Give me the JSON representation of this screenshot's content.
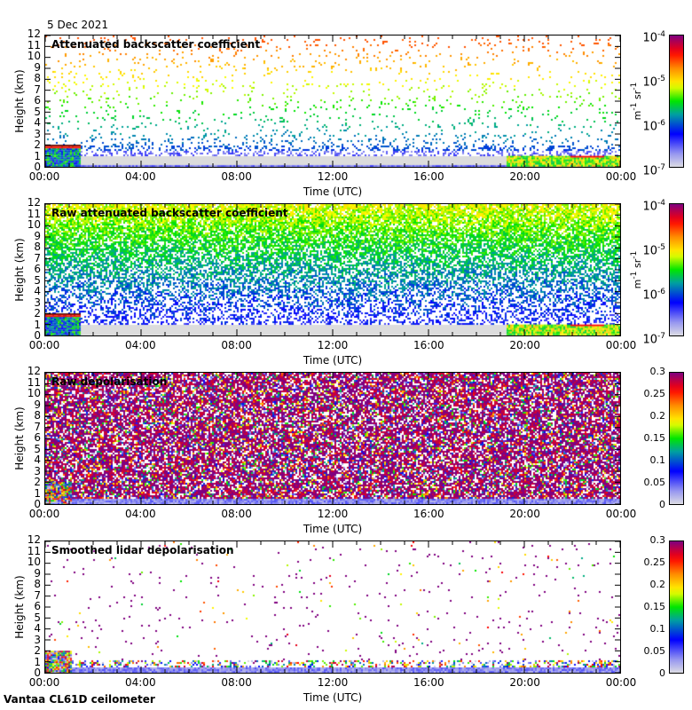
{
  "date": "5 Dec 2021",
  "footer": "Vantaa CL61D ceilometer",
  "chart_data": [
    {
      "type": "heatmap",
      "title": "Attenuated backscatter coefficient",
      "xlabel": "Time (UTC)",
      "ylabel": "Height (km)",
      "xticks": [
        "00:00",
        "04:00",
        "08:00",
        "12:00",
        "16:00",
        "20:00",
        "00:00"
      ],
      "yticks": [
        "0",
        "1",
        "2",
        "3",
        "4",
        "5",
        "6",
        "7",
        "8",
        "9",
        "10",
        "11",
        "12"
      ],
      "ylim": [
        0,
        12
      ],
      "colorbar": {
        "scale": "log",
        "ticks": [
          "10-7",
          "10-6",
          "10-5",
          "10-4"
        ],
        "unit": "m-1 sr-1",
        "range": [
          1e-07,
          0.0001
        ]
      },
      "mode": "sparse"
    },
    {
      "type": "heatmap",
      "title": "Raw attenuated backscatter coefficient",
      "xlabel": "Time (UTC)",
      "ylabel": "Height (km)",
      "xticks": [
        "00:00",
        "04:00",
        "08:00",
        "12:00",
        "16:00",
        "20:00",
        "00:00"
      ],
      "yticks": [
        "0",
        "1",
        "2",
        "3",
        "4",
        "5",
        "6",
        "7",
        "8",
        "9",
        "10",
        "11",
        "12"
      ],
      "ylim": [
        0,
        12
      ],
      "colorbar": {
        "scale": "log",
        "ticks": [
          "10-7",
          "10-6",
          "10-5",
          "10-4"
        ],
        "unit": "m-1 sr-1",
        "range": [
          1e-07,
          0.0001
        ]
      },
      "mode": "dense"
    },
    {
      "type": "heatmap",
      "title": "Raw depolarisation",
      "xlabel": "Time (UTC)",
      "ylabel": "Height (km)",
      "xticks": [
        "00:00",
        "04:00",
        "08:00",
        "12:00",
        "16:00",
        "20:00",
        "00:00"
      ],
      "yticks": [
        "0",
        "1",
        "2",
        "3",
        "4",
        "5",
        "6",
        "7",
        "8",
        "9",
        "10",
        "11",
        "12"
      ],
      "ylim": [
        0,
        12
      ],
      "colorbar": {
        "scale": "linear",
        "ticks": [
          "0",
          "0.05",
          "0.1",
          "0.15",
          "0.2",
          "0.25",
          "0.3"
        ],
        "unit": "",
        "range": [
          0,
          0.3
        ]
      },
      "mode": "depol"
    },
    {
      "type": "heatmap",
      "title": "Smoothed lidar depolarisation",
      "xlabel": "Time (UTC)",
      "ylabel": "Height (km)",
      "xticks": [
        "00:00",
        "04:00",
        "08:00",
        "12:00",
        "16:00",
        "20:00",
        "00:00"
      ],
      "yticks": [
        "0",
        "1",
        "2",
        "3",
        "4",
        "5",
        "6",
        "7",
        "8",
        "9",
        "10",
        "11",
        "12"
      ],
      "ylim": [
        0,
        12
      ],
      "colorbar": {
        "scale": "linear",
        "ticks": [
          "0",
          "0.05",
          "0.1",
          "0.15",
          "0.2",
          "0.25",
          "0.3"
        ],
        "unit": "",
        "range": [
          0,
          0.3
        ]
      },
      "mode": "smooth"
    }
  ]
}
